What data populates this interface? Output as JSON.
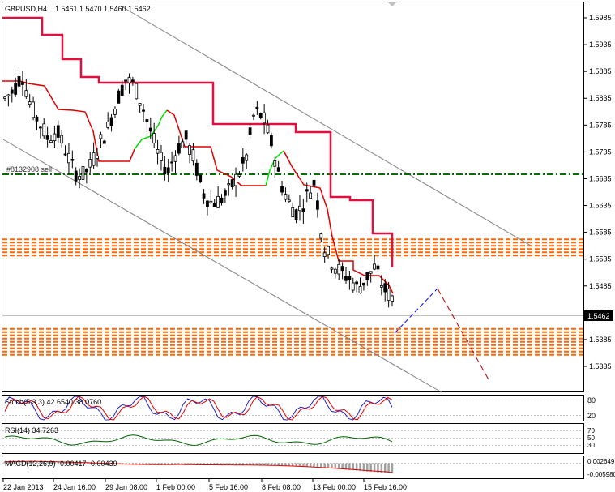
{
  "header": {
    "symbol": "GBPUSD,H4",
    "ohlc": "1.5461 1.5470 1.5460 1.5462"
  },
  "colors": {
    "background": "#ffffff",
    "axis": "#000000",
    "grid": "#c0c0c0",
    "candle": "#000000",
    "trail_red": "#e00000",
    "trail_green": "#00dd00",
    "hline_sell": "#007000",
    "zone": "#ff6600",
    "channel": "#707070",
    "projection_up": "#0000ff",
    "projection_down": "#c00000",
    "stoch_main": "#2020c0",
    "stoch_signal": "#e00000",
    "rsi_line": "#006400",
    "macd_hist": "#a0a0a0",
    "macd_signal": "#e00000",
    "price_box": "#000000"
  },
  "price_axis": {
    "ticks": [
      "1.5985",
      "1.5935",
      "1.5885",
      "1.5835",
      "1.5785",
      "1.5735",
      "1.5685",
      "1.5635",
      "1.5585",
      "1.5535",
      "1.5485",
      "1.5435",
      "1.5385",
      "1.5335"
    ],
    "current_price": "1.5462"
  },
  "order_line": {
    "label": "#8132908 sell"
  },
  "time_axis": {
    "labels": [
      "22 Jan 2013",
      "24 Jan 16:00",
      "29 Jan 08:00",
      "1 Feb 00:00",
      "5 Feb 16:00",
      "8 Feb 08:00",
      "13 Feb 00:00",
      "15 Feb 16:00"
    ]
  },
  "stochastic": {
    "label": "Stoch(5,3,3) 42.6540 38.0760",
    "levels": [
      "80",
      "20"
    ]
  },
  "rsi": {
    "label": "RSI(14) 34.7263",
    "levels": [
      "70",
      "50",
      "30"
    ]
  },
  "macd": {
    "label": "MACD(12,26,9) -0.00417 -0.00439",
    "levels": [
      "0.002649",
      "-0.005980"
    ]
  },
  "chart_data": {
    "type": "candlestick",
    "symbol": "GBPUSD",
    "timeframe": "H4",
    "ylim": [
      1.5315,
      1.6015
    ],
    "close_path": [
      1.5835,
      1.585,
      1.588,
      1.582,
      1.579,
      1.576,
      1.5775,
      1.574,
      1.57,
      1.569,
      1.571,
      1.575,
      1.578,
      1.583,
      1.587,
      1.586,
      1.582,
      1.577,
      1.572,
      1.57,
      1.574,
      1.576,
      1.572,
      1.566,
      1.564,
      1.5645,
      1.566,
      1.569,
      1.572,
      1.581,
      1.58,
      1.575,
      1.568,
      1.564,
      1.562,
      1.565,
      1.568,
      1.556,
      1.553,
      1.551,
      1.55,
      1.548,
      1.55,
      1.552,
      1.548,
      1.5462
    ],
    "trail_red": [
      1.5875,
      1.5875,
      1.5875,
      1.583,
      1.578,
      1.573,
      1.573,
      1.573,
      1.576,
      1.576,
      1.572,
      1.57,
      1.569,
      1.569,
      1.568,
      1.565,
      1.56,
      1.557,
      1.556,
      1.553,
      1.552,
      1.55
    ],
    "trail_steps_upper": [
      1.5985,
      1.5985,
      1.5935,
      1.591,
      1.588,
      1.5875,
      1.5875,
      1.5875,
      1.5875,
      1.58,
      1.58,
      1.58,
      1.578,
      1.578,
      1.566,
      1.566,
      1.561,
      1.555
    ],
    "sell_level": 1.5711,
    "resistance_zone": [
      1.554,
      1.5572
    ],
    "support_zone": [
      1.5355,
      1.5405
    ],
    "projection": [
      [
        1.5425,
        1.551
      ],
      [
        1.551,
        1.5345
      ]
    ],
    "stoch_value": 42.654,
    "stoch_signal": 38.076,
    "rsi_value": 34.7263,
    "macd_main": -0.00417,
    "macd_signal": -0.00439
  }
}
